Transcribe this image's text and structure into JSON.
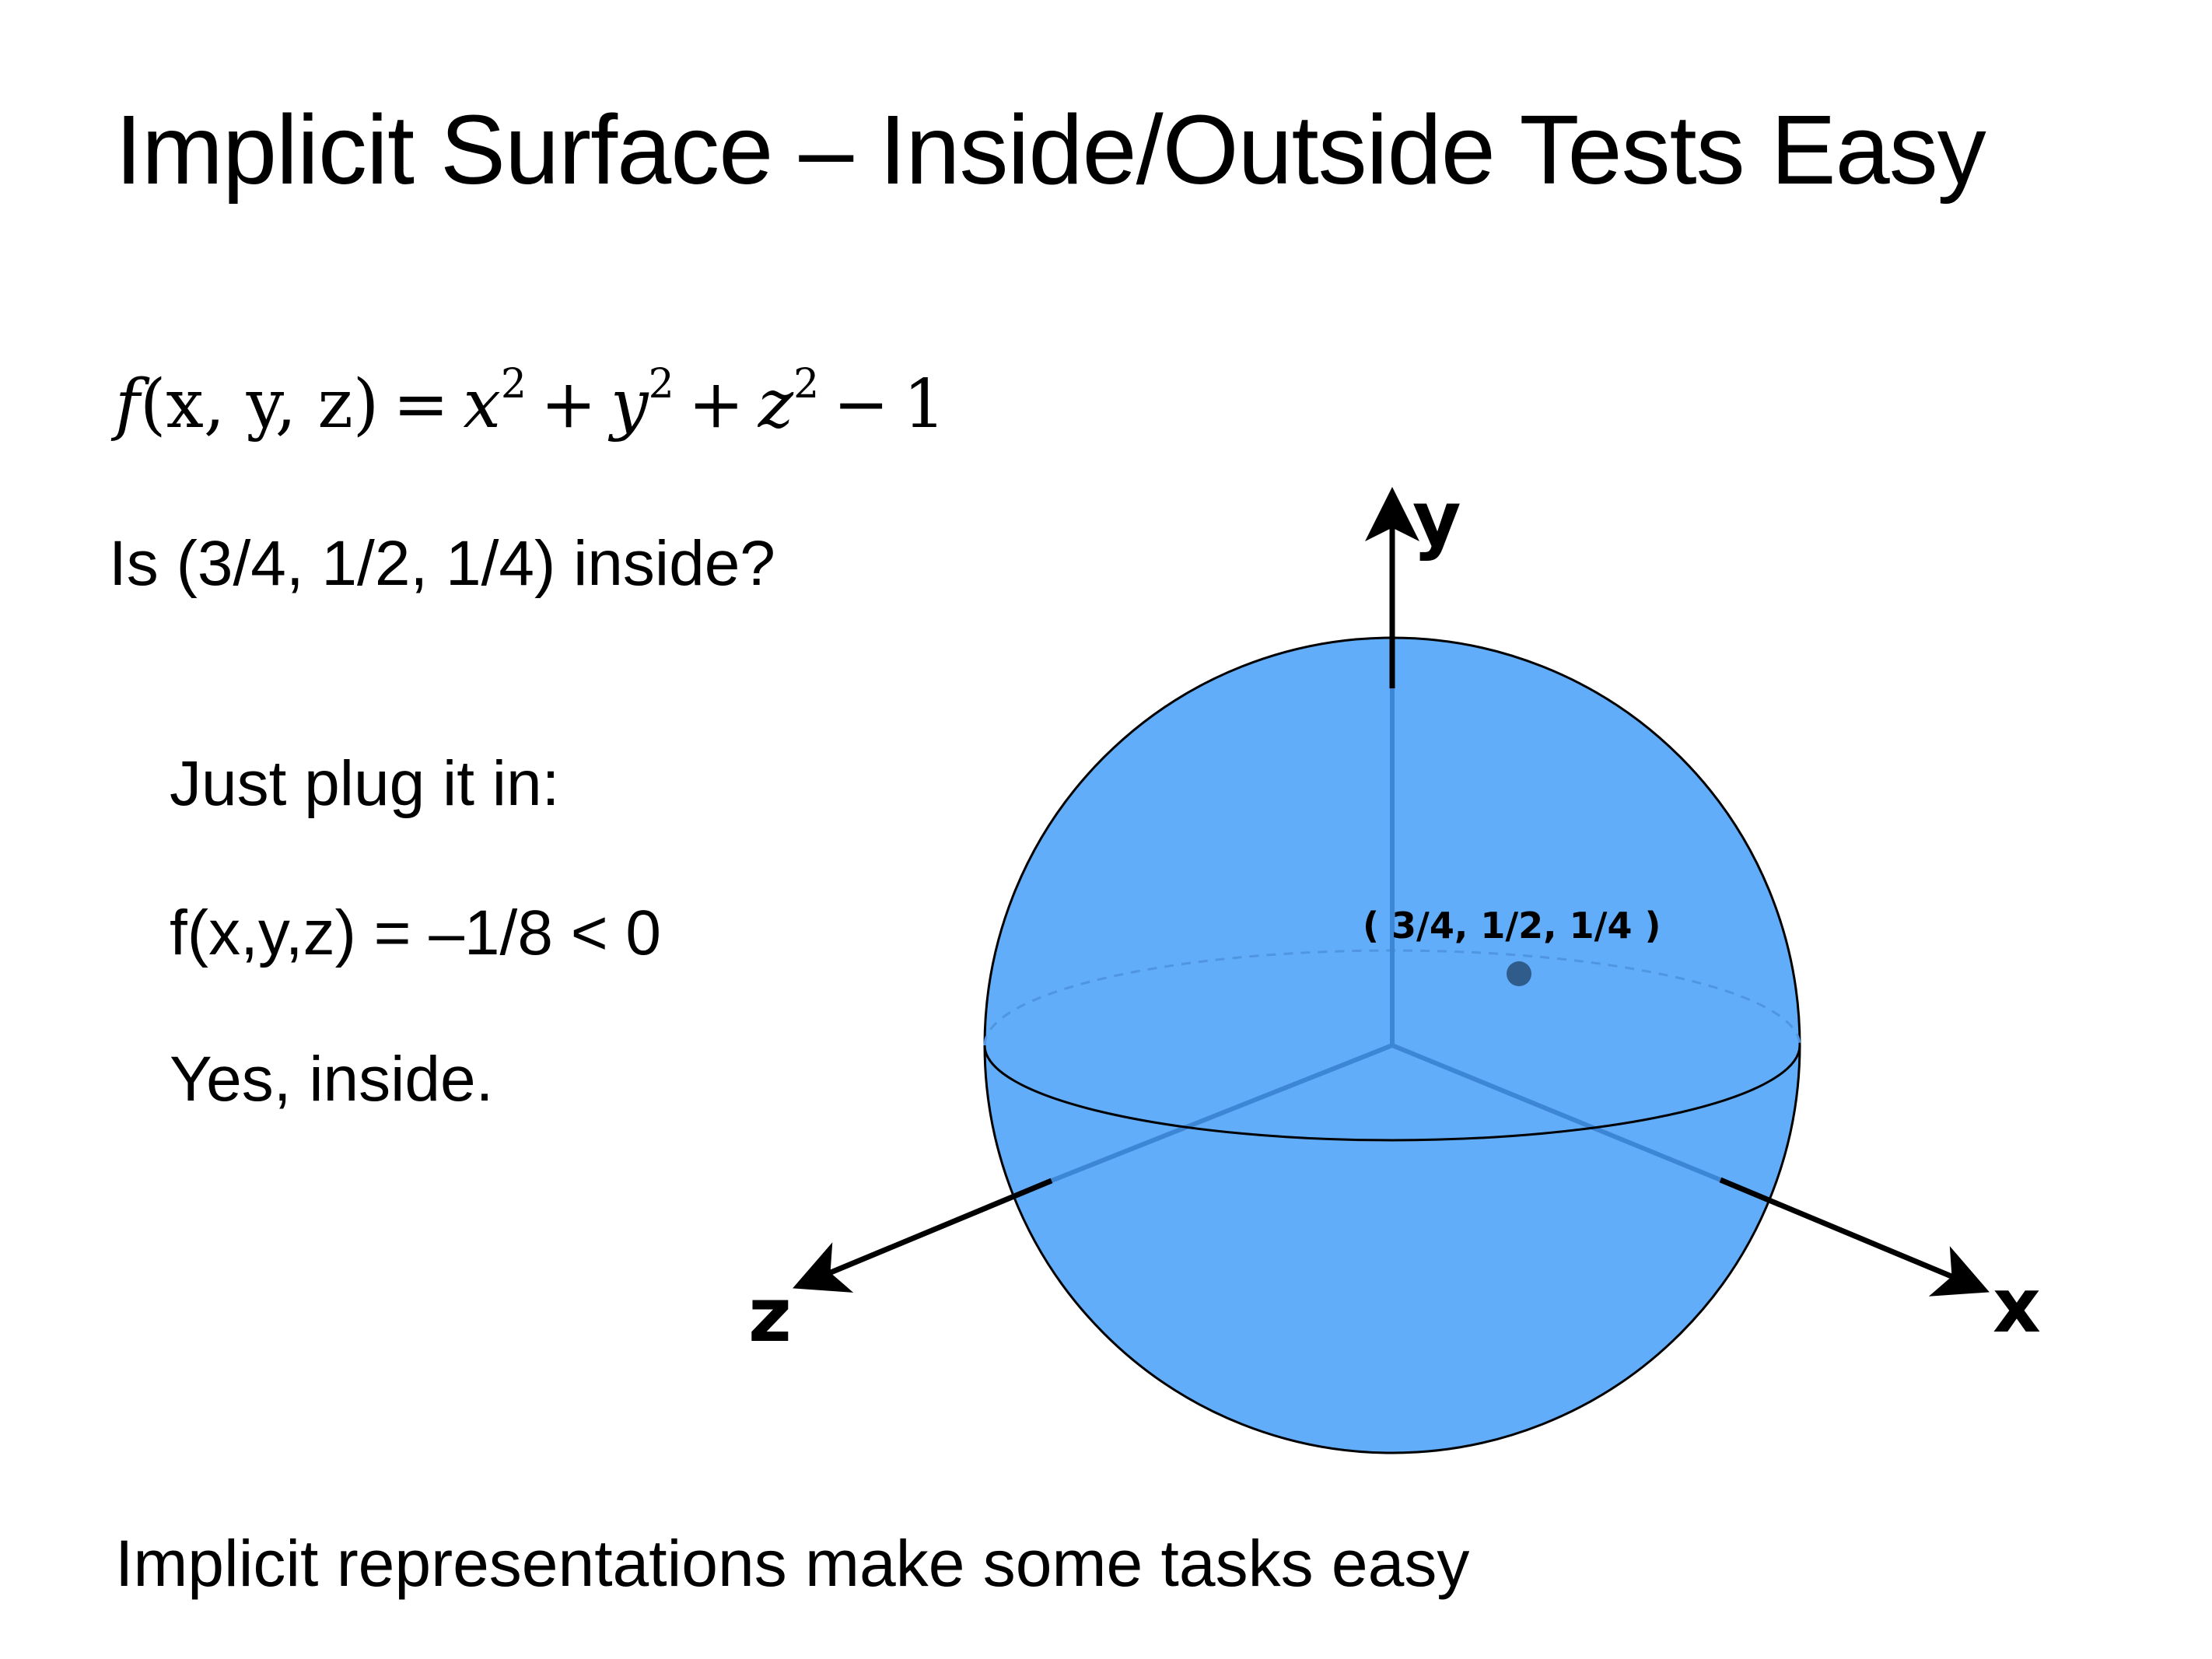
{
  "slide": {
    "title": "Implicit Surface – Inside/Outside Tests Easy",
    "formula": {
      "lhs": "f",
      "args": "(x, y, z)",
      "equals": "=",
      "t1_base": "x",
      "t1_exp": "2",
      "plus1": "+",
      "t2_base": "y",
      "t2_exp": "2",
      "plus2": "+",
      "t3_base": "z",
      "t3_exp": "2",
      "minus": "−",
      "const": "1"
    },
    "question": "Is (3/4, 1/2, 1/4) inside?",
    "steps": [
      "Just plug it in:",
      "f(x,y,z) = –1/8 < 0",
      "Yes, inside."
    ],
    "footer": "Implicit representations make some tasks easy"
  },
  "diagram": {
    "axes": {
      "x": "x",
      "y": "y",
      "z": "z"
    },
    "point_label": "( 3/4, 1/2, 1/4 )",
    "colors": {
      "sphere_fill": "#62adf9",
      "sphere_stroke": "#000000",
      "hidden_axis": "#3d86d6",
      "equator_dashed": "#4f95df",
      "point": "#2f5c8a",
      "axis": "#000000"
    }
  }
}
